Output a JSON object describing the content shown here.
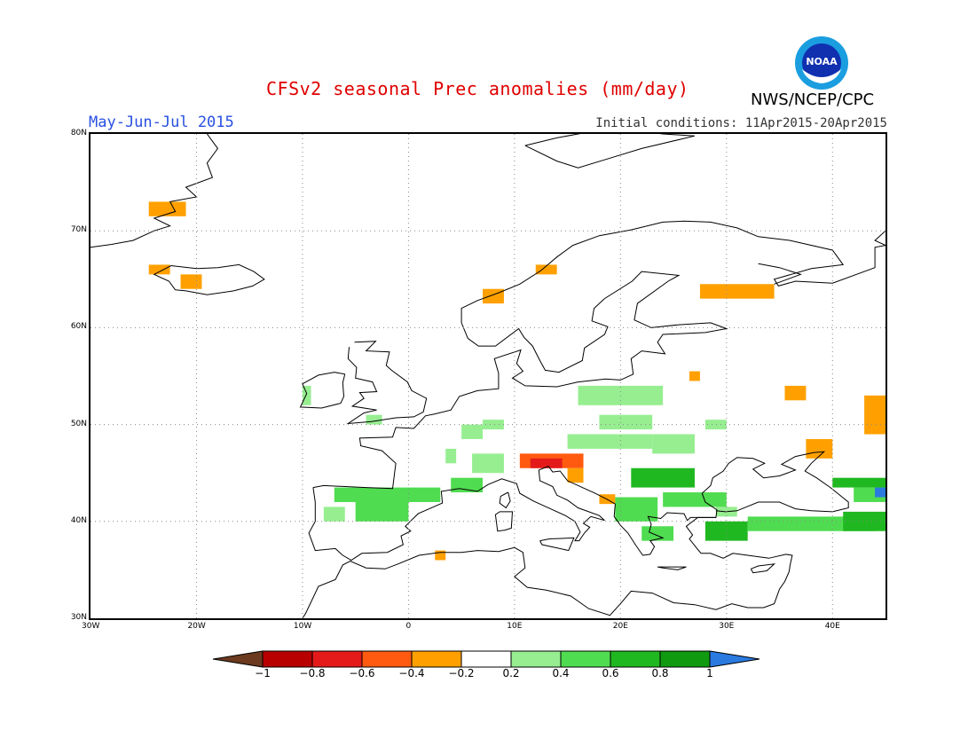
{
  "header": {
    "title": "CFSv2 seasonal Prec anomalies (mm/day)",
    "period": "May-Jun-Jul 2015",
    "initial_conditions": "Initial conditions: 11Apr2015-20Apr2015",
    "agency": "NWS/NCEP/CPC",
    "logo_text": "NOAA"
  },
  "axes": {
    "lon_labels": [
      "30W",
      "20W",
      "10W",
      "0",
      "10E",
      "20E",
      "30E",
      "40E"
    ],
    "lat_labels": [
      "80N",
      "70N",
      "60N",
      "50N",
      "40N",
      "30N"
    ],
    "lon_range": [
      -30,
      45
    ],
    "lat_range": [
      30,
      80
    ],
    "grid": true
  },
  "colorbar": {
    "labels": [
      "-1",
      "-0.8",
      "-0.6",
      "-0.4",
      "-0.2",
      "0.2",
      "0.4",
      "0.6",
      "0.8",
      "1"
    ],
    "colors": [
      "#6b3a1f",
      "#b80000",
      "#e41a1a",
      "#ff5a10",
      "#ffa000",
      "#ffffff",
      "#96ee90",
      "#50dc50",
      "#20b820",
      "#109a10",
      "#2a7ae0"
    ]
  },
  "anomaly_patches": [
    {
      "name": "svalbard-greenland-dry",
      "lon": -24.5,
      "lat": 71.5,
      "w": 3.5,
      "h": 1.5,
      "value": -0.3
    },
    {
      "name": "iceland-west-dry",
      "lon": -24.5,
      "lat": 65.5,
      "w": 2,
      "h": 1,
      "value": -0.3
    },
    {
      "name": "iceland-south-dry",
      "lon": -21.5,
      "lat": 64,
      "w": 2,
      "h": 1.5,
      "value": -0.3
    },
    {
      "name": "norway-central-dry",
      "lon": 7,
      "lat": 62.5,
      "w": 2,
      "h": 1.5,
      "value": -0.3
    },
    {
      "name": "norway-north-dry",
      "lon": 12,
      "lat": 65.5,
      "w": 2,
      "h": 1,
      "value": -0.3
    },
    {
      "name": "karelia-dry",
      "lon": 27.5,
      "lat": 63,
      "w": 7,
      "h": 1.5,
      "value": -0.3
    },
    {
      "name": "russia-west-dry",
      "lon": 26.5,
      "lat": 54.5,
      "w": 1,
      "h": 1,
      "value": -0.3
    },
    {
      "name": "russia-south-dry",
      "lon": 35.5,
      "lat": 52.5,
      "w": 2,
      "h": 1.5,
      "value": -0.3
    },
    {
      "name": "volga-dry",
      "lon": 43,
      "lat": 49,
      "w": 2.5,
      "h": 4,
      "value": -0.3
    },
    {
      "name": "ukraine-east-dry",
      "lon": 37.5,
      "lat": 46.5,
      "w": 2.5,
      "h": 2,
      "value": -0.3
    },
    {
      "name": "alps-dry",
      "lon": 10.5,
      "lat": 45.5,
      "w": 6,
      "h": 1.5,
      "value": -0.4
    },
    {
      "name": "slovenia-dry",
      "lon": 11.5,
      "lat": 45.5,
      "w": 3,
      "h": 1,
      "value": -0.7
    },
    {
      "name": "croatia-dry",
      "lon": 15,
      "lat": 44,
      "w": 1.5,
      "h": 1.5,
      "value": -0.3
    },
    {
      "name": "albania-dry",
      "lon": 18,
      "lat": 41.8,
      "w": 1.5,
      "h": 1,
      "value": -0.3
    },
    {
      "name": "algeria-dry",
      "lon": 2.5,
      "lat": 36,
      "w": 1,
      "h": 1,
      "value": -0.3
    },
    {
      "name": "poland-wet",
      "lon": 16,
      "lat": 52,
      "w": 8,
      "h": 2,
      "value": 0.3
    },
    {
      "name": "czech-wet",
      "lon": 18,
      "lat": 49.5,
      "w": 5,
      "h": 1.5,
      "value": 0.3
    },
    {
      "name": "germany-wet",
      "lon": 7,
      "lat": 49.5,
      "w": 2,
      "h": 1,
      "value": 0.3
    },
    {
      "name": "belgium-wet",
      "lon": 5,
      "lat": 48.5,
      "w": 2,
      "h": 1.5,
      "value": 0.3
    },
    {
      "name": "hungary-wet",
      "lon": 15,
      "lat": 47.5,
      "w": 8,
      "h": 1.5,
      "value": 0.3
    },
    {
      "name": "romania-wet",
      "lon": 23,
      "lat": 47,
      "w": 4,
      "h": 2,
      "value": 0.3
    },
    {
      "name": "ukraine-wet",
      "lon": 28,
      "lat": 49.5,
      "w": 2,
      "h": 1,
      "value": 0.3
    },
    {
      "name": "ireland-wet",
      "lon": -10,
      "lat": 52,
      "w": 0.8,
      "h": 2,
      "value": 0.3
    },
    {
      "name": "england-wet",
      "lon": -4,
      "lat": 50,
      "w": 1.5,
      "h": 1,
      "value": 0.3
    },
    {
      "name": "france-west-wet",
      "lon": 3.5,
      "lat": 46,
      "w": 1,
      "h": 1.5,
      "value": 0.3
    },
    {
      "name": "france-south-wet",
      "lon": 4,
      "lat": 43,
      "w": 3,
      "h": 1.5,
      "value": 0.5
    },
    {
      "name": "switzerland-wet",
      "lon": 6,
      "lat": 45,
      "w": 3,
      "h": 2,
      "value": 0.3
    },
    {
      "name": "spain-north-wet",
      "lon": -7,
      "lat": 42,
      "w": 10,
      "h": 1.5,
      "value": 0.4
    },
    {
      "name": "spain-central-wet",
      "lon": -5,
      "lat": 40,
      "w": 5,
      "h": 2.5,
      "value": 0.4
    },
    {
      "name": "portugal-wet",
      "lon": -8,
      "lat": 40,
      "w": 2,
      "h": 1.5,
      "value": 0.3
    },
    {
      "name": "balkans-wet",
      "lon": 21,
      "lat": 43.5,
      "w": 6,
      "h": 2,
      "value": 0.6
    },
    {
      "name": "greece-wet",
      "lon": 19.5,
      "lat": 40,
      "w": 4,
      "h": 2.5,
      "value": 0.5
    },
    {
      "name": "greece-south-wet",
      "lon": 22,
      "lat": 38,
      "w": 3,
      "h": 1.5,
      "value": 0.4
    },
    {
      "name": "bulgaria-wet",
      "lon": 24,
      "lat": 41.5,
      "w": 6,
      "h": 1.5,
      "value": 0.4
    },
    {
      "name": "turkey-west-wet",
      "lon": 28,
      "lat": 38,
      "w": 4,
      "h": 2,
      "value": 0.6
    },
    {
      "name": "turkey-central-wet",
      "lon": 32,
      "lat": 39,
      "w": 12,
      "h": 1.5,
      "value": 0.4
    },
    {
      "name": "turkey-east-wet",
      "lon": 41,
      "lat": 39,
      "w": 4,
      "h": 2,
      "value": 0.6
    },
    {
      "name": "caucasus-wet",
      "lon": 40,
      "lat": 43.5,
      "w": 5,
      "h": 1,
      "value": 0.7
    },
    {
      "name": "caucasus-east-wet",
      "lon": 42,
      "lat": 42,
      "w": 3,
      "h": 1.5,
      "value": 0.5
    },
    {
      "name": "caspian-very-wet",
      "lon": 44,
      "lat": 42.5,
      "w": 1,
      "h": 1,
      "value": 1.1
    },
    {
      "name": "bosphorus-wet",
      "lon": 29,
      "lat": 40.5,
      "w": 2,
      "h": 1,
      "value": 0.3
    }
  ]
}
